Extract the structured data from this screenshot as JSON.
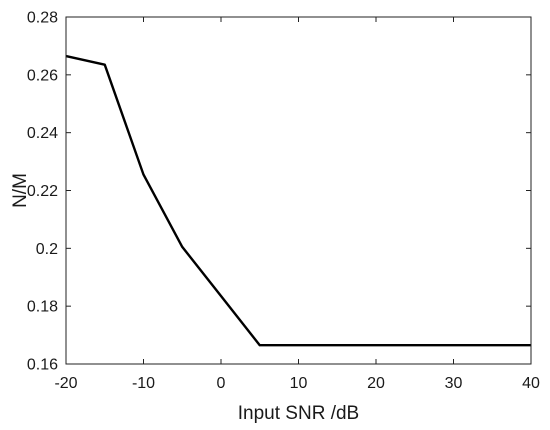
{
  "chart_data": {
    "type": "line",
    "title": "",
    "xlabel": "Input SNR /dB",
    "ylabel": "N/M",
    "xlim": [
      -20,
      40
    ],
    "ylim": [
      0.16,
      0.28
    ],
    "xticks": [
      -20,
      -10,
      0,
      10,
      20,
      30,
      40
    ],
    "yticks": [
      0.16,
      0.18,
      0.2,
      0.22,
      0.24,
      0.26,
      0.28
    ],
    "xtick_labels": [
      "-20",
      "-10",
      "0",
      "10",
      "20",
      "30",
      "40"
    ],
    "ytick_labels": [
      "0.16",
      "0.18",
      "0.2",
      "0.22",
      "0.24",
      "0.26",
      "0.28"
    ],
    "grid": false,
    "legend": "none",
    "series": [
      {
        "color": "#000000",
        "x": [
          -20,
          -15,
          -10,
          -5,
          0,
          5,
          10,
          15,
          20,
          25,
          30,
          35,
          40
        ],
        "y": [
          0.2665,
          0.2635,
          0.2255,
          0.2005,
          0.1835,
          0.1665,
          0.1665,
          0.1665,
          0.1665,
          0.1665,
          0.1665,
          0.1665,
          0.1665
        ]
      }
    ]
  }
}
